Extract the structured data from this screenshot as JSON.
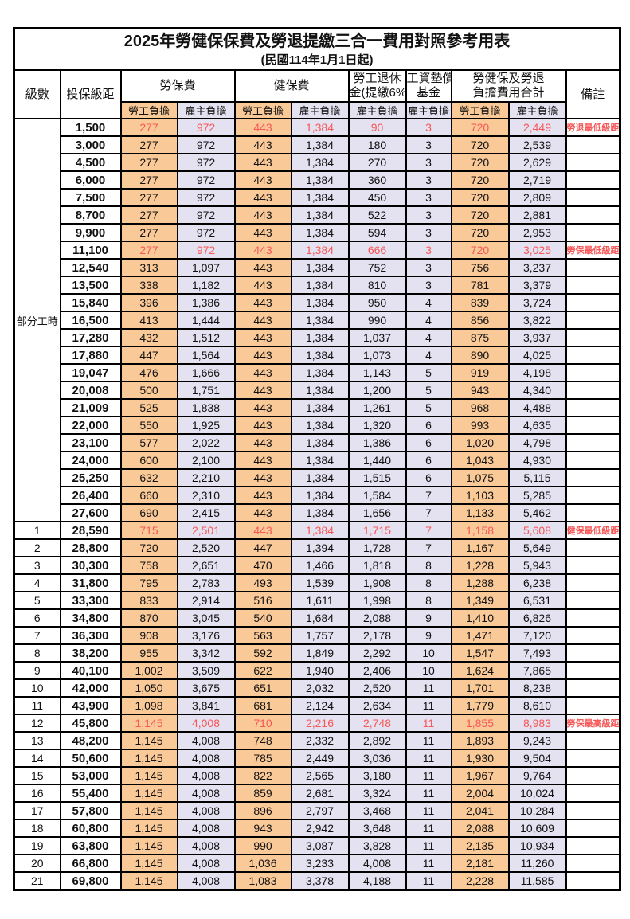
{
  "title": {
    "main": "2025年勞健保保費及勞退提繳三合一費用對照參考用表",
    "date_line": "(民國114年1月1日起)"
  },
  "colors": {
    "employee_bg": "#FAC998",
    "employer_bg": "#E4E1F0",
    "highlight_red": "#F75757",
    "border_black": "#000000"
  },
  "header": {
    "level_label": "級數",
    "bracket_label": "投保級距",
    "labor_label": "勞保費",
    "health_label": "健保費",
    "pension_l1": "勞工退休",
    "pension_l2": "金(提繳6%)",
    "fund_l1": "工資墊償",
    "fund_l2": "基金",
    "total_l1": "勞健保及勞退",
    "total_l2": "負擔費用合計",
    "note_label": "備註",
    "employee_label": "勞工負擔",
    "employer_label": "雇主負擔"
  },
  "part_time_label": "部分工時",
  "part_time_rowspan": 23,
  "columns": [
    "級數",
    "投保級距",
    "勞保費-勞工負擔",
    "勞保費-雇主負擔",
    "健保費-勞工負擔",
    "健保費-雇主負擔",
    "勞工退休金(提繳6%)-雇主負擔",
    "工資墊償基金-雇主負擔",
    "勞健保及勞退負擔費用合計-勞工負擔",
    "勞健保及勞退負擔費用合計-雇主負擔",
    "備註"
  ],
  "rows": [
    {
      "level": "",
      "bracket": "1,500",
      "labor_emp": "277",
      "labor_er": "972",
      "health_emp": "443",
      "health_er": "1,384",
      "pension_er": "90",
      "fund_er": "3",
      "total_emp": "720",
      "total_er": "2,449",
      "note": "勞退最低級距",
      "red": true
    },
    {
      "level": "",
      "bracket": "3,000",
      "labor_emp": "277",
      "labor_er": "972",
      "health_emp": "443",
      "health_er": "1,384",
      "pension_er": "180",
      "fund_er": "3",
      "total_emp": "720",
      "total_er": "2,539"
    },
    {
      "level": "",
      "bracket": "4,500",
      "labor_emp": "277",
      "labor_er": "972",
      "health_emp": "443",
      "health_er": "1,384",
      "pension_er": "270",
      "fund_er": "3",
      "total_emp": "720",
      "total_er": "2,629"
    },
    {
      "level": "",
      "bracket": "6,000",
      "labor_emp": "277",
      "labor_er": "972",
      "health_emp": "443",
      "health_er": "1,384",
      "pension_er": "360",
      "fund_er": "3",
      "total_emp": "720",
      "total_er": "2,719"
    },
    {
      "level": "",
      "bracket": "7,500",
      "labor_emp": "277",
      "labor_er": "972",
      "health_emp": "443",
      "health_er": "1,384",
      "pension_er": "450",
      "fund_er": "3",
      "total_emp": "720",
      "total_er": "2,809"
    },
    {
      "level": "",
      "bracket": "8,700",
      "labor_emp": "277",
      "labor_er": "972",
      "health_emp": "443",
      "health_er": "1,384",
      "pension_er": "522",
      "fund_er": "3",
      "total_emp": "720",
      "total_er": "2,881"
    },
    {
      "level": "",
      "bracket": "9,900",
      "labor_emp": "277",
      "labor_er": "972",
      "health_emp": "443",
      "health_er": "1,384",
      "pension_er": "594",
      "fund_er": "3",
      "total_emp": "720",
      "total_er": "2,953"
    },
    {
      "level": "",
      "bracket": "11,100",
      "labor_emp": "277",
      "labor_er": "972",
      "health_emp": "443",
      "health_er": "1,384",
      "pension_er": "666",
      "fund_er": "3",
      "total_emp": "720",
      "total_er": "3,025",
      "note": "勞保最低級距",
      "red": true
    },
    {
      "level": "",
      "bracket": "12,540",
      "labor_emp": "313",
      "labor_er": "1,097",
      "health_emp": "443",
      "health_er": "1,384",
      "pension_er": "752",
      "fund_er": "3",
      "total_emp": "756",
      "total_er": "3,237"
    },
    {
      "level": "",
      "bracket": "13,500",
      "labor_emp": "338",
      "labor_er": "1,182",
      "health_emp": "443",
      "health_er": "1,384",
      "pension_er": "810",
      "fund_er": "3",
      "total_emp": "781",
      "total_er": "3,379"
    },
    {
      "level": "",
      "bracket": "15,840",
      "labor_emp": "396",
      "labor_er": "1,386",
      "health_emp": "443",
      "health_er": "1,384",
      "pension_er": "950",
      "fund_er": "4",
      "total_emp": "839",
      "total_er": "3,724"
    },
    {
      "level": "",
      "bracket": "16,500",
      "labor_emp": "413",
      "labor_er": "1,444",
      "health_emp": "443",
      "health_er": "1,384",
      "pension_er": "990",
      "fund_er": "4",
      "total_emp": "856",
      "total_er": "3,822"
    },
    {
      "level": "",
      "bracket": "17,280",
      "labor_emp": "432",
      "labor_er": "1,512",
      "health_emp": "443",
      "health_er": "1,384",
      "pension_er": "1,037",
      "fund_er": "4",
      "total_emp": "875",
      "total_er": "3,937"
    },
    {
      "level": "",
      "bracket": "17,880",
      "labor_emp": "447",
      "labor_er": "1,564",
      "health_emp": "443",
      "health_er": "1,384",
      "pension_er": "1,073",
      "fund_er": "4",
      "total_emp": "890",
      "total_er": "4,025"
    },
    {
      "level": "",
      "bracket": "19,047",
      "labor_emp": "476",
      "labor_er": "1,666",
      "health_emp": "443",
      "health_er": "1,384",
      "pension_er": "1,143",
      "fund_er": "5",
      "total_emp": "919",
      "total_er": "4,198"
    },
    {
      "level": "",
      "bracket": "20,008",
      "labor_emp": "500",
      "labor_er": "1,751",
      "health_emp": "443",
      "health_er": "1,384",
      "pension_er": "1,200",
      "fund_er": "5",
      "total_emp": "943",
      "total_er": "4,340"
    },
    {
      "level": "",
      "bracket": "21,009",
      "labor_emp": "525",
      "labor_er": "1,838",
      "health_emp": "443",
      "health_er": "1,384",
      "pension_er": "1,261",
      "fund_er": "5",
      "total_emp": "968",
      "total_er": "4,488"
    },
    {
      "level": "",
      "bracket": "22,000",
      "labor_emp": "550",
      "labor_er": "1,925",
      "health_emp": "443",
      "health_er": "1,384",
      "pension_er": "1,320",
      "fund_er": "6",
      "total_emp": "993",
      "total_er": "4,635"
    },
    {
      "level": "",
      "bracket": "23,100",
      "labor_emp": "577",
      "labor_er": "2,022",
      "health_emp": "443",
      "health_er": "1,384",
      "pension_er": "1,386",
      "fund_er": "6",
      "total_emp": "1,020",
      "total_er": "4,798"
    },
    {
      "level": "",
      "bracket": "24,000",
      "labor_emp": "600",
      "labor_er": "2,100",
      "health_emp": "443",
      "health_er": "1,384",
      "pension_er": "1,440",
      "fund_er": "6",
      "total_emp": "1,043",
      "total_er": "4,930"
    },
    {
      "level": "",
      "bracket": "25,250",
      "labor_emp": "632",
      "labor_er": "2,210",
      "health_emp": "443",
      "health_er": "1,384",
      "pension_er": "1,515",
      "fund_er": "6",
      "total_emp": "1,075",
      "total_er": "5,115"
    },
    {
      "level": "",
      "bracket": "26,400",
      "labor_emp": "660",
      "labor_er": "2,310",
      "health_emp": "443",
      "health_er": "1,384",
      "pension_er": "1,584",
      "fund_er": "7",
      "total_emp": "1,103",
      "total_er": "5,285"
    },
    {
      "level": "",
      "bracket": "27,600",
      "labor_emp": "690",
      "labor_er": "2,415",
      "health_emp": "443",
      "health_er": "1,384",
      "pension_er": "1,656",
      "fund_er": "7",
      "total_emp": "1,133",
      "total_er": "5,462"
    },
    {
      "level": "1",
      "bracket": "28,590",
      "labor_emp": "715",
      "labor_er": "2,501",
      "health_emp": "443",
      "health_er": "1,384",
      "pension_er": "1,715",
      "fund_er": "7",
      "total_emp": "1,158",
      "total_er": "5,608",
      "note": "健保最低級距",
      "red": true
    },
    {
      "level": "2",
      "bracket": "28,800",
      "labor_emp": "720",
      "labor_er": "2,520",
      "health_emp": "447",
      "health_er": "1,394",
      "pension_er": "1,728",
      "fund_er": "7",
      "total_emp": "1,167",
      "total_er": "5,649"
    },
    {
      "level": "3",
      "bracket": "30,300",
      "labor_emp": "758",
      "labor_er": "2,651",
      "health_emp": "470",
      "health_er": "1,466",
      "pension_er": "1,818",
      "fund_er": "8",
      "total_emp": "1,228",
      "total_er": "5,943"
    },
    {
      "level": "4",
      "bracket": "31,800",
      "labor_emp": "795",
      "labor_er": "2,783",
      "health_emp": "493",
      "health_er": "1,539",
      "pension_er": "1,908",
      "fund_er": "8",
      "total_emp": "1,288",
      "total_er": "6,238"
    },
    {
      "level": "5",
      "bracket": "33,300",
      "labor_emp": "833",
      "labor_er": "2,914",
      "health_emp": "516",
      "health_er": "1,611",
      "pension_er": "1,998",
      "fund_er": "8",
      "total_emp": "1,349",
      "total_er": "6,531"
    },
    {
      "level": "6",
      "bracket": "34,800",
      "labor_emp": "870",
      "labor_er": "3,045",
      "health_emp": "540",
      "health_er": "1,684",
      "pension_er": "2,088",
      "fund_er": "9",
      "total_emp": "1,410",
      "total_er": "6,826"
    },
    {
      "level": "7",
      "bracket": "36,300",
      "labor_emp": "908",
      "labor_er": "3,176",
      "health_emp": "563",
      "health_er": "1,757",
      "pension_er": "2,178",
      "fund_er": "9",
      "total_emp": "1,471",
      "total_er": "7,120"
    },
    {
      "level": "8",
      "bracket": "38,200",
      "labor_emp": "955",
      "labor_er": "3,342",
      "health_emp": "592",
      "health_er": "1,849",
      "pension_er": "2,292",
      "fund_er": "10",
      "total_emp": "1,547",
      "total_er": "7,493"
    },
    {
      "level": "9",
      "bracket": "40,100",
      "labor_emp": "1,002",
      "labor_er": "3,509",
      "health_emp": "622",
      "health_er": "1,940",
      "pension_er": "2,406",
      "fund_er": "10",
      "total_emp": "1,624",
      "total_er": "7,865"
    },
    {
      "level": "10",
      "bracket": "42,000",
      "labor_emp": "1,050",
      "labor_er": "3,675",
      "health_emp": "651",
      "health_er": "2,032",
      "pension_er": "2,520",
      "fund_er": "11",
      "total_emp": "1,701",
      "total_er": "8,238"
    },
    {
      "level": "11",
      "bracket": "43,900",
      "labor_emp": "1,098",
      "labor_er": "3,841",
      "health_emp": "681",
      "health_er": "2,124",
      "pension_er": "2,634",
      "fund_er": "11",
      "total_emp": "1,779",
      "total_er": "8,610"
    },
    {
      "level": "12",
      "bracket": "45,800",
      "labor_emp": "1,145",
      "labor_er": "4,008",
      "health_emp": "710",
      "health_er": "2,216",
      "pension_er": "2,748",
      "fund_er": "11",
      "total_emp": "1,855",
      "total_er": "8,983",
      "note": "勞保最高級距",
      "red": true
    },
    {
      "level": "13",
      "bracket": "48,200",
      "labor_emp": "1,145",
      "labor_er": "4,008",
      "health_emp": "748",
      "health_er": "2,332",
      "pension_er": "2,892",
      "fund_er": "11",
      "total_emp": "1,893",
      "total_er": "9,243"
    },
    {
      "level": "14",
      "bracket": "50,600",
      "labor_emp": "1,145",
      "labor_er": "4,008",
      "health_emp": "785",
      "health_er": "2,449",
      "pension_er": "3,036",
      "fund_er": "11",
      "total_emp": "1,930",
      "total_er": "9,504"
    },
    {
      "level": "15",
      "bracket": "53,000",
      "labor_emp": "1,145",
      "labor_er": "4,008",
      "health_emp": "822",
      "health_er": "2,565",
      "pension_er": "3,180",
      "fund_er": "11",
      "total_emp": "1,967",
      "total_er": "9,764"
    },
    {
      "level": "16",
      "bracket": "55,400",
      "labor_emp": "1,145",
      "labor_er": "4,008",
      "health_emp": "859",
      "health_er": "2,681",
      "pension_er": "3,324",
      "fund_er": "11",
      "total_emp": "2,004",
      "total_er": "10,024"
    },
    {
      "level": "17",
      "bracket": "57,800",
      "labor_emp": "1,145",
      "labor_er": "4,008",
      "health_emp": "896",
      "health_er": "2,797",
      "pension_er": "3,468",
      "fund_er": "11",
      "total_emp": "2,041",
      "total_er": "10,284"
    },
    {
      "level": "18",
      "bracket": "60,800",
      "labor_emp": "1,145",
      "labor_er": "4,008",
      "health_emp": "943",
      "health_er": "2,942",
      "pension_er": "3,648",
      "fund_er": "11",
      "total_emp": "2,088",
      "total_er": "10,609"
    },
    {
      "level": "19",
      "bracket": "63,800",
      "labor_emp": "1,145",
      "labor_er": "4,008",
      "health_emp": "990",
      "health_er": "3,087",
      "pension_er": "3,828",
      "fund_er": "11",
      "total_emp": "2,135",
      "total_er": "10,934"
    },
    {
      "level": "20",
      "bracket": "66,800",
      "labor_emp": "1,145",
      "labor_er": "4,008",
      "health_emp": "1,036",
      "health_er": "3,233",
      "pension_er": "4,008",
      "fund_er": "11",
      "total_emp": "2,181",
      "total_er": "11,260"
    },
    {
      "level": "21",
      "bracket": "69,800",
      "labor_emp": "1,145",
      "labor_er": "4,008",
      "health_emp": "1,083",
      "health_er": "3,378",
      "pension_er": "4,188",
      "fund_er": "11",
      "total_emp": "2,228",
      "total_er": "11,585"
    }
  ]
}
